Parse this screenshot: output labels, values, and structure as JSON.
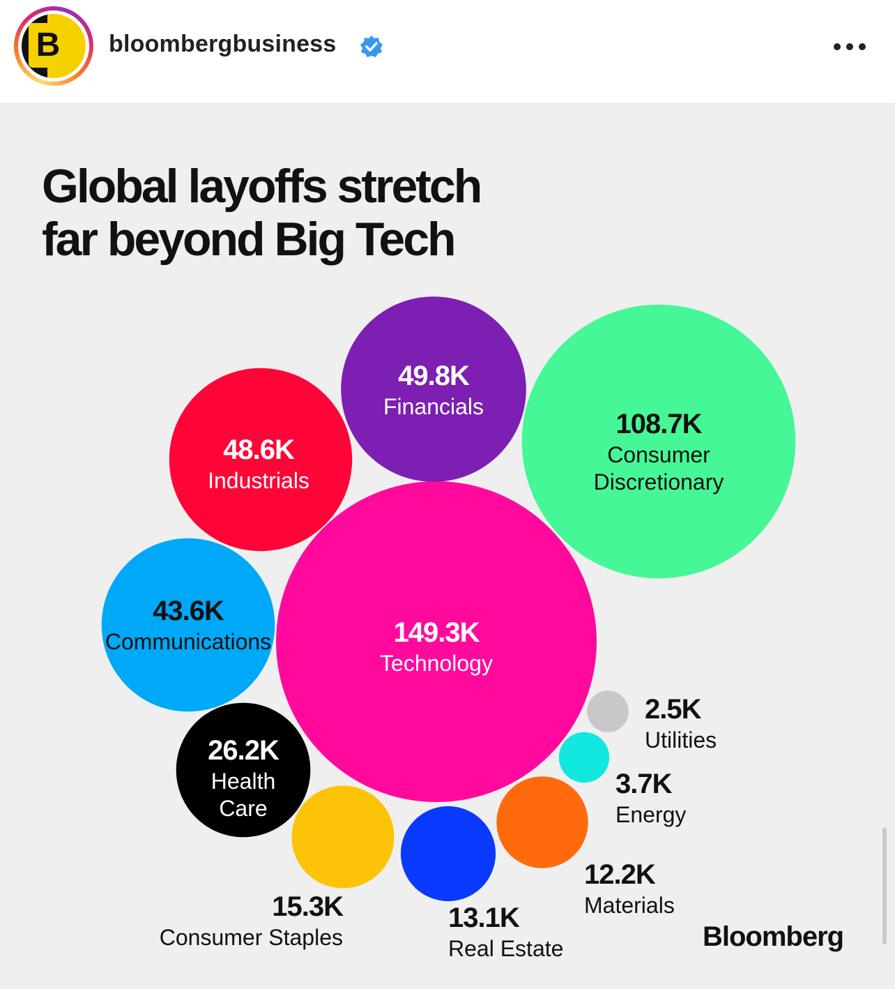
{
  "header": {
    "avatar_letter": "B",
    "account_name": "bloombergbusiness",
    "verified_icon": "verified-badge-icon",
    "more_icon": "more-options-icon"
  },
  "post": {
    "headline_line1": "Global layoffs stretch",
    "headline_line2": "far beyond Big Tech",
    "brand": "Bloomberg"
  },
  "chart_data": {
    "type": "bubble",
    "title": "Global layoffs stretch far beyond Big Tech",
    "series": [
      {
        "category": "Technology",
        "value": 149.3,
        "label": "149.3K",
        "color": "#ff0a9d"
      },
      {
        "category": "Consumer Discretionary",
        "value": 108.7,
        "label": "108.7K",
        "color": "#45f796"
      },
      {
        "category": "Financials",
        "value": 49.8,
        "label": "49.8K",
        "color": "#7d1fb2"
      },
      {
        "category": "Industrials",
        "value": 48.6,
        "label": "48.6K",
        "color": "#ff0537"
      },
      {
        "category": "Communications",
        "value": 43.6,
        "label": "43.6K",
        "color": "#00a9f7"
      },
      {
        "category": "Health Care",
        "value": 26.2,
        "label": "26.2K",
        "color": "#000000"
      },
      {
        "category": "Consumer Staples",
        "value": 15.3,
        "label": "15.3K",
        "color": "#fdc307"
      },
      {
        "category": "Real Estate",
        "value": 13.1,
        "label": "13.1K",
        "color": "#0a3afd"
      },
      {
        "category": "Materials",
        "value": 12.2,
        "label": "12.2K",
        "color": "#ff6a0d"
      },
      {
        "category": "Energy",
        "value": 3.7,
        "label": "3.7K",
        "color": "#12e8e0"
      },
      {
        "category": "Utilities",
        "value": 2.5,
        "label": "2.5K",
        "color": "#c8c8c8"
      }
    ]
  }
}
